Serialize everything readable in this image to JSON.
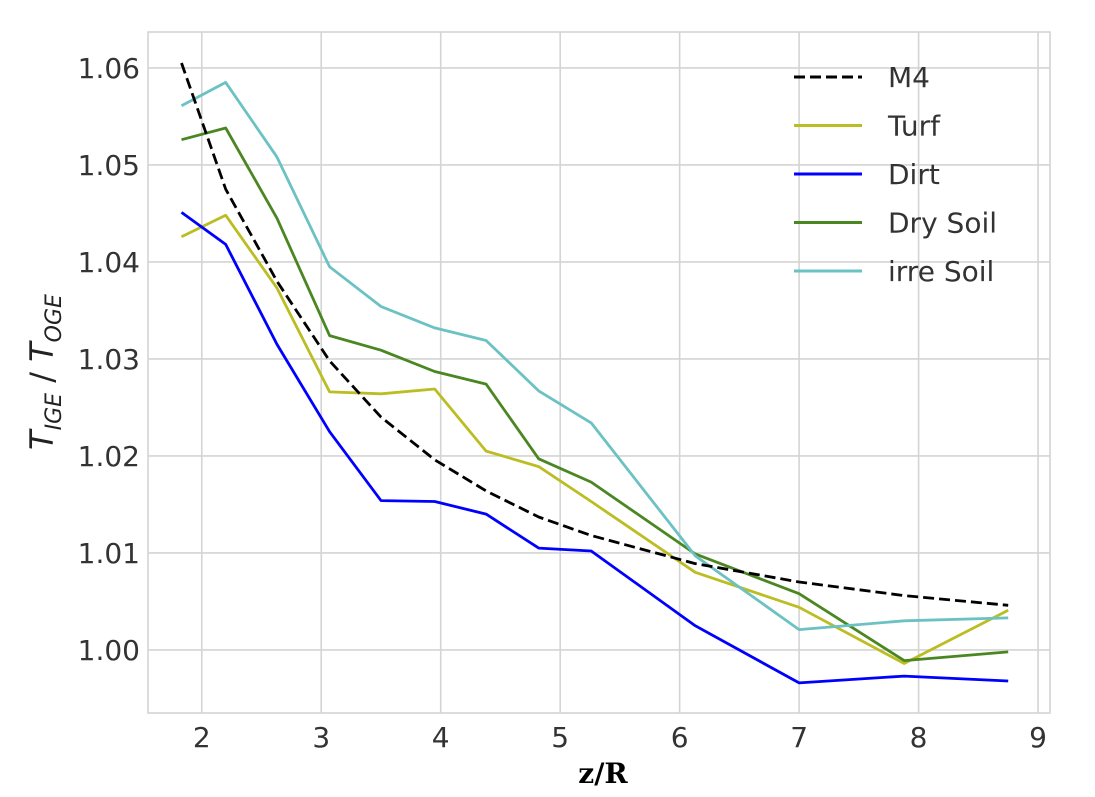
{
  "chart_data": {
    "type": "line",
    "title": "",
    "xlabel": "z/R",
    "ylabel_main_1": "T",
    "ylabel_sub_1": "IGE",
    "ylabel_sep": " / ",
    "ylabel_main_2": "T",
    "ylabel_sub_2": "OGE",
    "xlim": [
      1.55,
      9.1
    ],
    "ylim": [
      0.9935,
      1.0637
    ],
    "xticks": [
      2,
      3,
      4,
      5,
      6,
      7,
      8,
      9
    ],
    "yticks": [
      1.0,
      1.01,
      1.02,
      1.03,
      1.04,
      1.05,
      1.06
    ],
    "xtick_labels": [
      "2",
      "3",
      "4",
      "5",
      "6",
      "7",
      "8",
      "9"
    ],
    "ytick_labels": [
      "1.00",
      "1.01",
      "1.02",
      "1.03",
      "1.04",
      "1.05",
      "1.06"
    ],
    "grid": true,
    "legend_position": "top-right",
    "series": [
      {
        "name": "M4",
        "color": "#000000",
        "dash": "dashed",
        "x": [
          1.83,
          2.2,
          2.63,
          3.07,
          3.5,
          3.95,
          4.38,
          4.82,
          5.26,
          6.13,
          7.0,
          7.88,
          8.75
        ],
        "y": [
          1.0605,
          1.0475,
          1.038,
          1.0298,
          1.024,
          1.0196,
          1.0164,
          1.0137,
          1.0118,
          1.0089,
          1.007,
          1.0056,
          1.0046
        ]
      },
      {
        "name": "Turf",
        "color": "#bcbd22",
        "dash": "solid",
        "x": [
          1.83,
          2.2,
          2.63,
          3.07,
          3.5,
          3.95,
          4.38,
          4.82,
          5.26,
          6.13,
          7.0,
          7.88,
          8.75
        ],
        "y": [
          1.0426,
          1.0448,
          1.0373,
          1.0266,
          1.0264,
          1.0269,
          1.0205,
          1.0189,
          1.0153,
          1.008,
          1.0044,
          0.9986,
          1.0041
        ]
      },
      {
        "name": "Dirt",
        "color": "#0000ff",
        "dash": "solid",
        "x": [
          1.83,
          2.2,
          2.63,
          3.07,
          3.5,
          3.95,
          4.38,
          4.82,
          5.26,
          6.13,
          7.0,
          7.88,
          8.75
        ],
        "y": [
          1.0451,
          1.0418,
          1.0315,
          1.0225,
          1.0154,
          1.0153,
          1.014,
          1.0105,
          1.0102,
          1.0025,
          0.9966,
          0.9973,
          0.9968
        ]
      },
      {
        "name": "Dry Soil",
        "color": "#4a8722",
        "dash": "solid",
        "x": [
          1.83,
          2.2,
          2.63,
          3.07,
          3.5,
          3.95,
          4.38,
          4.82,
          5.26,
          6.13,
          7.0,
          7.88,
          8.75
        ],
        "y": [
          1.0526,
          1.0538,
          1.0445,
          1.0324,
          1.0309,
          1.0287,
          1.0274,
          1.0197,
          1.0173,
          1.0099,
          1.0058,
          0.9989,
          0.9998
        ]
      },
      {
        "name": "irre Soil",
        "color": "#6cc2c2",
        "dash": "solid",
        "x": [
          1.83,
          2.2,
          2.63,
          3.07,
          3.5,
          3.95,
          4.38,
          4.82,
          5.26,
          6.13,
          7.0,
          7.88,
          8.75
        ],
        "y": [
          1.0561,
          1.0585,
          1.0508,
          1.0395,
          1.0354,
          1.0332,
          1.0319,
          1.0267,
          1.0234,
          1.0097,
          1.0021,
          1.003,
          1.0033
        ]
      }
    ]
  }
}
